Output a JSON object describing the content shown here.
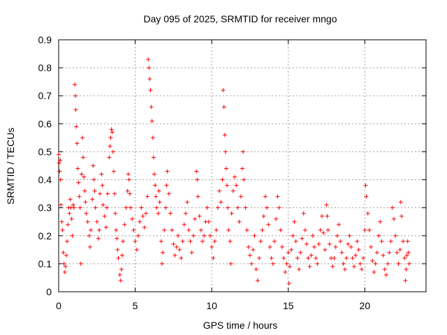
{
  "chart_data": {
    "type": "scatter",
    "title": "Day 095 of 2025, SRMTID for receiver mngo",
    "xlabel": "GPS time / hours",
    "ylabel": "SRMTID / TECUs",
    "xlim": [
      0,
      24
    ],
    "ylim": [
      0,
      0.9
    ],
    "xticks": [
      0,
      5,
      10,
      15,
      20
    ],
    "xtick_labels": [
      "0",
      "5",
      "10",
      "15",
      "20"
    ],
    "yticks": [
      0,
      0.1,
      0.2,
      0.3,
      0.4,
      0.5,
      0.6,
      0.7,
      0.8,
      0.9
    ],
    "ytick_labels": [
      "0",
      "0.1",
      "0.2",
      "0.3",
      "0.4",
      "0.5",
      "0.6",
      "0.7",
      "0.8",
      "0.9"
    ],
    "grid": true,
    "marker": "+",
    "color": "#ff0000",
    "series": [
      {
        "name": "SRMTID",
        "points": [
          [
            0.0,
            0.49
          ],
          [
            0.03,
            0.46
          ],
          [
            0.06,
            0.43
          ],
          [
            0.1,
            0.47
          ],
          [
            0.12,
            0.4
          ],
          [
            0.15,
            0.31
          ],
          [
            0.2,
            0.25
          ],
          [
            0.25,
            0.22
          ],
          [
            0.3,
            0.14
          ],
          [
            0.35,
            0.1
          ],
          [
            0.4,
            0.07
          ],
          [
            0.45,
            0.09
          ],
          [
            0.5,
            0.13
          ],
          [
            0.55,
            0.18
          ],
          [
            0.6,
            0.24
          ],
          [
            0.65,
            0.3
          ],
          [
            0.7,
            0.28
          ],
          [
            0.75,
            0.33
          ],
          [
            0.8,
            0.3
          ],
          [
            0.85,
            0.26
          ],
          [
            0.9,
            0.2
          ],
          [
            0.95,
            0.31
          ],
          [
            1.0,
            0.3
          ],
          [
            1.05,
            0.74
          ],
          [
            1.1,
            0.7
          ],
          [
            1.12,
            0.65
          ],
          [
            1.15,
            0.59
          ],
          [
            1.2,
            0.53
          ],
          [
            1.25,
            0.44
          ],
          [
            1.3,
            0.39
          ],
          [
            1.35,
            0.34
          ],
          [
            1.4,
            0.3
          ],
          [
            1.45,
            0.1
          ],
          [
            1.5,
            0.42
          ],
          [
            1.55,
            0.55
          ],
          [
            1.6,
            0.48
          ],
          [
            1.65,
            0.41
          ],
          [
            1.7,
            0.36
          ],
          [
            1.75,
            0.32
          ],
          [
            1.8,
            0.28
          ],
          [
            1.9,
            0.25
          ],
          [
            2.0,
            0.2
          ],
          [
            2.05,
            0.16
          ],
          [
            2.1,
            0.22
          ],
          [
            2.2,
            0.33
          ],
          [
            2.25,
            0.45
          ],
          [
            2.3,
            0.4
          ],
          [
            2.35,
            0.36
          ],
          [
            2.4,
            0.3
          ],
          [
            2.5,
            0.25
          ],
          [
            2.6,
            0.19
          ],
          [
            2.65,
            0.22
          ],
          [
            2.7,
            0.35
          ],
          [
            2.8,
            0.42
          ],
          [
            2.85,
            0.38
          ],
          [
            2.9,
            0.31
          ],
          [
            3.0,
            0.27
          ],
          [
            3.1,
            0.23
          ],
          [
            3.15,
            0.3
          ],
          [
            3.2,
            0.35
          ],
          [
            3.3,
            0.48
          ],
          [
            3.35,
            0.52
          ],
          [
            3.4,
            0.55
          ],
          [
            3.45,
            0.58
          ],
          [
            3.5,
            0.57
          ],
          [
            3.55,
            0.5
          ],
          [
            3.6,
            0.43
          ],
          [
            3.65,
            0.35
          ],
          [
            3.7,
            0.28
          ],
          [
            3.75,
            0.22
          ],
          [
            3.8,
            0.19
          ],
          [
            3.85,
            0.15
          ],
          [
            3.9,
            0.12
          ],
          [
            4.0,
            0.06
          ],
          [
            4.05,
            0.04
          ],
          [
            4.1,
            0.08
          ],
          [
            4.15,
            0.13
          ],
          [
            4.2,
            0.18
          ],
          [
            4.3,
            0.24
          ],
          [
            4.4,
            0.3
          ],
          [
            4.5,
            0.36
          ],
          [
            4.55,
            0.42
          ],
          [
            4.6,
            0.4
          ],
          [
            4.65,
            0.35
          ],
          [
            4.7,
            0.3
          ],
          [
            4.8,
            0.26
          ],
          [
            4.9,
            0.22
          ],
          [
            5.0,
            0.18
          ],
          [
            5.1,
            0.15
          ],
          [
            5.2,
            0.2
          ],
          [
            5.3,
            0.25
          ],
          [
            5.4,
            0.3
          ],
          [
            5.5,
            0.27
          ],
          [
            5.6,
            0.23
          ],
          [
            5.7,
            0.28
          ],
          [
            5.8,
            0.34
          ],
          [
            5.85,
            0.83
          ],
          [
            5.9,
            0.8
          ],
          [
            5.95,
            0.76
          ],
          [
            6.0,
            0.72
          ],
          [
            6.05,
            0.66
          ],
          [
            6.1,
            0.61
          ],
          [
            6.15,
            0.55
          ],
          [
            6.2,
            0.48
          ],
          [
            6.25,
            0.42
          ],
          [
            6.3,
            0.38
          ],
          [
            6.35,
            0.34
          ],
          [
            6.4,
            0.3
          ],
          [
            6.5,
            0.28
          ],
          [
            6.55,
            0.36
          ],
          [
            6.6,
            0.32
          ],
          [
            6.7,
            0.18
          ],
          [
            6.75,
            0.1
          ],
          [
            6.8,
            0.14
          ],
          [
            6.9,
            0.22
          ],
          [
            7.0,
            0.3
          ],
          [
            7.05,
            0.38
          ],
          [
            7.1,
            0.43
          ],
          [
            7.2,
            0.35
          ],
          [
            7.3,
            0.28
          ],
          [
            7.4,
            0.22
          ],
          [
            7.5,
            0.17
          ],
          [
            7.6,
            0.13
          ],
          [
            7.7,
            0.16
          ],
          [
            7.8,
            0.2
          ],
          [
            7.9,
            0.15
          ],
          [
            8.0,
            0.12
          ],
          [
            8.1,
            0.18
          ],
          [
            8.2,
            0.24
          ],
          [
            8.3,
            0.28
          ],
          [
            8.4,
            0.32
          ],
          [
            8.5,
            0.22
          ],
          [
            8.6,
            0.18
          ],
          [
            8.7,
            0.14
          ],
          [
            8.8,
            0.2
          ],
          [
            8.9,
            0.26
          ],
          [
            9.0,
            0.43
          ],
          [
            9.05,
            0.4
          ],
          [
            9.1,
            0.34
          ],
          [
            9.2,
            0.27
          ],
          [
            9.3,
            0.22
          ],
          [
            9.4,
            0.18
          ],
          [
            9.5,
            0.2
          ],
          [
            9.6,
            0.25
          ],
          [
            9.7,
            0.3
          ],
          [
            9.8,
            0.25
          ],
          [
            9.9,
            0.2
          ],
          [
            10.0,
            0.16
          ],
          [
            10.1,
            0.12
          ],
          [
            10.2,
            0.18
          ],
          [
            10.3,
            0.22
          ],
          [
            10.4,
            0.3
          ],
          [
            10.5,
            0.36
          ],
          [
            10.6,
            0.32
          ],
          [
            10.7,
            0.4
          ],
          [
            10.75,
            0.72
          ],
          [
            10.8,
            0.66
          ],
          [
            10.85,
            0.56
          ],
          [
            10.9,
            0.5
          ],
          [
            10.95,
            0.44
          ],
          [
            11.0,
            0.38
          ],
          [
            11.05,
            0.3
          ],
          [
            11.1,
            0.22
          ],
          [
            11.2,
            0.18
          ],
          [
            11.25,
            0.1
          ],
          [
            11.3,
            0.28
          ],
          [
            11.4,
            0.36
          ],
          [
            11.5,
            0.41
          ],
          [
            11.6,
            0.38
          ],
          [
            11.7,
            0.3
          ],
          [
            11.8,
            0.25
          ],
          [
            11.9,
            0.34
          ],
          [
            12.0,
            0.44
          ],
          [
            12.05,
            0.5
          ],
          [
            12.1,
            0.4
          ],
          [
            12.2,
            0.3
          ],
          [
            12.3,
            0.22
          ],
          [
            12.4,
            0.16
          ],
          [
            12.5,
            0.13
          ],
          [
            12.6,
            0.1
          ],
          [
            12.7,
            0.15
          ],
          [
            12.8,
            0.2
          ],
          [
            12.9,
            0.08
          ],
          [
            13.0,
            0.04
          ],
          [
            13.1,
            0.12
          ],
          [
            13.2,
            0.18
          ],
          [
            13.3,
            0.22
          ],
          [
            13.4,
            0.27
          ],
          [
            13.5,
            0.34
          ],
          [
            13.6,
            0.3
          ],
          [
            13.7,
            0.24
          ],
          [
            13.8,
            0.16
          ],
          [
            13.9,
            0.12
          ],
          [
            14.0,
            0.1
          ],
          [
            14.1,
            0.18
          ],
          [
            14.2,
            0.26
          ],
          [
            14.3,
            0.34
          ],
          [
            14.4,
            0.3
          ],
          [
            14.5,
            0.22
          ],
          [
            14.6,
            0.16
          ],
          [
            14.7,
            0.12
          ],
          [
            14.8,
            0.07
          ],
          [
            14.9,
            0.1
          ],
          [
            15.0,
            0.14
          ],
          [
            15.05,
            0.03
          ],
          [
            15.1,
            0.09
          ],
          [
            15.2,
            0.15
          ],
          [
            15.3,
            0.2
          ],
          [
            15.4,
            0.25
          ],
          [
            15.5,
            0.18
          ],
          [
            15.6,
            0.12
          ],
          [
            15.7,
            0.08
          ],
          [
            15.8,
            0.14
          ],
          [
            15.9,
            0.19
          ],
          [
            16.0,
            0.28
          ],
          [
            16.1,
            0.22
          ],
          [
            16.2,
            0.17
          ],
          [
            16.3,
            0.12
          ],
          [
            16.4,
            0.09
          ],
          [
            16.5,
            0.13
          ],
          [
            16.6,
            0.2
          ],
          [
            16.7,
            0.16
          ],
          [
            16.8,
            0.12
          ],
          [
            16.9,
            0.1
          ],
          [
            17.0,
            0.17
          ],
          [
            17.1,
            0.22
          ],
          [
            17.2,
            0.27
          ],
          [
            17.3,
            0.21
          ],
          [
            17.4,
            0.15
          ],
          [
            17.5,
            0.31
          ],
          [
            17.55,
            0.27
          ],
          [
            17.6,
            0.22
          ],
          [
            17.7,
            0.17
          ],
          [
            17.8,
            0.12
          ],
          [
            17.9,
            0.09
          ],
          [
            18.0,
            0.12
          ],
          [
            18.1,
            0.16
          ],
          [
            18.2,
            0.2
          ],
          [
            18.3,
            0.24
          ],
          [
            18.4,
            0.18
          ],
          [
            18.5,
            0.14
          ],
          [
            18.6,
            0.1
          ],
          [
            18.7,
            0.08
          ],
          [
            18.8,
            0.12
          ],
          [
            18.9,
            0.17
          ],
          [
            19.0,
            0.2
          ],
          [
            19.1,
            0.16
          ],
          [
            19.2,
            0.12
          ],
          [
            19.3,
            0.09
          ],
          [
            19.4,
            0.13
          ],
          [
            19.5,
            0.18
          ],
          [
            19.6,
            0.15
          ],
          [
            19.7,
            0.1
          ],
          [
            19.8,
            0.08
          ],
          [
            19.9,
            0.12
          ],
          [
            20.0,
            0.22
          ],
          [
            20.05,
            0.38
          ],
          [
            20.1,
            0.34
          ],
          [
            20.2,
            0.28
          ],
          [
            20.3,
            0.22
          ],
          [
            20.4,
            0.16
          ],
          [
            20.5,
            0.11
          ],
          [
            20.6,
            0.07
          ],
          [
            20.7,
            0.1
          ],
          [
            20.8,
            0.14
          ],
          [
            20.9,
            0.2
          ],
          [
            21.0,
            0.25
          ],
          [
            21.1,
            0.18
          ],
          [
            21.2,
            0.13
          ],
          [
            21.3,
            0.08
          ],
          [
            21.4,
            0.06
          ],
          [
            21.5,
            0.1
          ],
          [
            21.6,
            0.14
          ],
          [
            21.7,
            0.18
          ],
          [
            21.8,
            0.3
          ],
          [
            21.9,
            0.26
          ],
          [
            22.0,
            0.2
          ],
          [
            22.1,
            0.14
          ],
          [
            22.2,
            0.1
          ],
          [
            22.3,
            0.15
          ],
          [
            22.35,
            0.32
          ],
          [
            22.4,
            0.27
          ],
          [
            22.5,
            0.18
          ],
          [
            22.6,
            0.12
          ],
          [
            22.65,
            0.04
          ],
          [
            22.7,
            0.08
          ],
          [
            22.75,
            0.13
          ],
          [
            22.8,
            0.18
          ],
          [
            22.85,
            0.14
          ],
          [
            22.9,
            0.1
          ]
        ]
      }
    ]
  }
}
